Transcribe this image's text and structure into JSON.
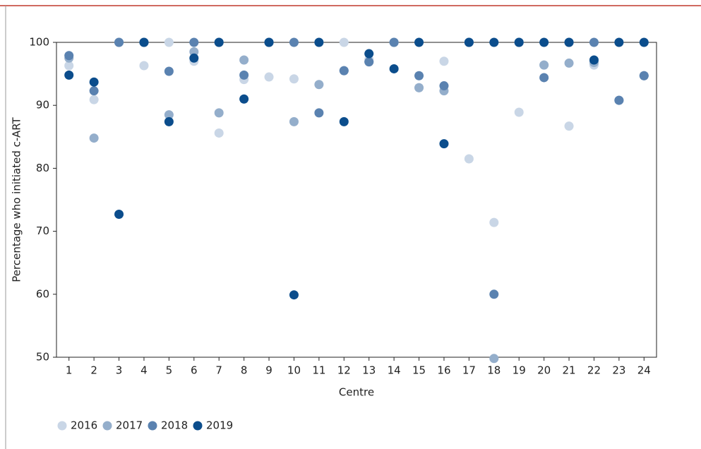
{
  "chart_data": {
    "type": "scatter",
    "x_label": "Centre",
    "y_label": "Percentage who initiated c-ART",
    "categories": [
      "1",
      "2",
      "3",
      "4",
      "5",
      "6",
      "7",
      "8",
      "9",
      "10",
      "11",
      "12",
      "13",
      "14",
      "15",
      "16",
      "17",
      "18",
      "19",
      "20",
      "21",
      "22",
      "23",
      "24"
    ],
    "ylim": [
      50,
      100
    ],
    "yticks": [
      50,
      60,
      70,
      80,
      90,
      100
    ],
    "legend": "bottom-left",
    "series": [
      {
        "name": "2016",
        "color": "#c9d6e6",
        "values": [
          96.3,
          90.9,
          100,
          96.3,
          100,
          97.0,
          85.6,
          94.1,
          94.5,
          94.2,
          100,
          100,
          97.3,
          100,
          92.8,
          97.0,
          81.5,
          71.4,
          88.9,
          96.4,
          86.7,
          96.4,
          90.8,
          94.7
        ]
      },
      {
        "name": "2017",
        "color": "#94aecb",
        "values": [
          97.5,
          84.8,
          100,
          100,
          88.5,
          98.5,
          88.8,
          97.2,
          100,
          87.4,
          93.3,
          95.5,
          96.9,
          100,
          92.8,
          92.3,
          100,
          49.8,
          100,
          96.4,
          96.7,
          96.8,
          90.8,
          94.7
        ]
      },
      {
        "name": "2018",
        "color": "#5a82b0",
        "values": [
          97.9,
          92.3,
          100,
          100,
          95.4,
          100,
          100,
          94.8,
          100,
          100,
          88.8,
          95.5,
          96.9,
          100,
          94.7,
          93.1,
          100,
          60.0,
          100,
          94.4,
          100,
          100,
          90.8,
          94.7
        ]
      },
      {
        "name": "2019",
        "color": "#0b4d8c",
        "values": [
          94.8,
          93.7,
          72.7,
          100,
          87.4,
          97.5,
          100,
          91.0,
          100,
          59.9,
          100,
          87.4,
          98.2,
          95.8,
          100,
          83.9,
          100,
          100,
          100,
          100,
          100,
          97.2,
          100,
          100
        ]
      }
    ]
  }
}
